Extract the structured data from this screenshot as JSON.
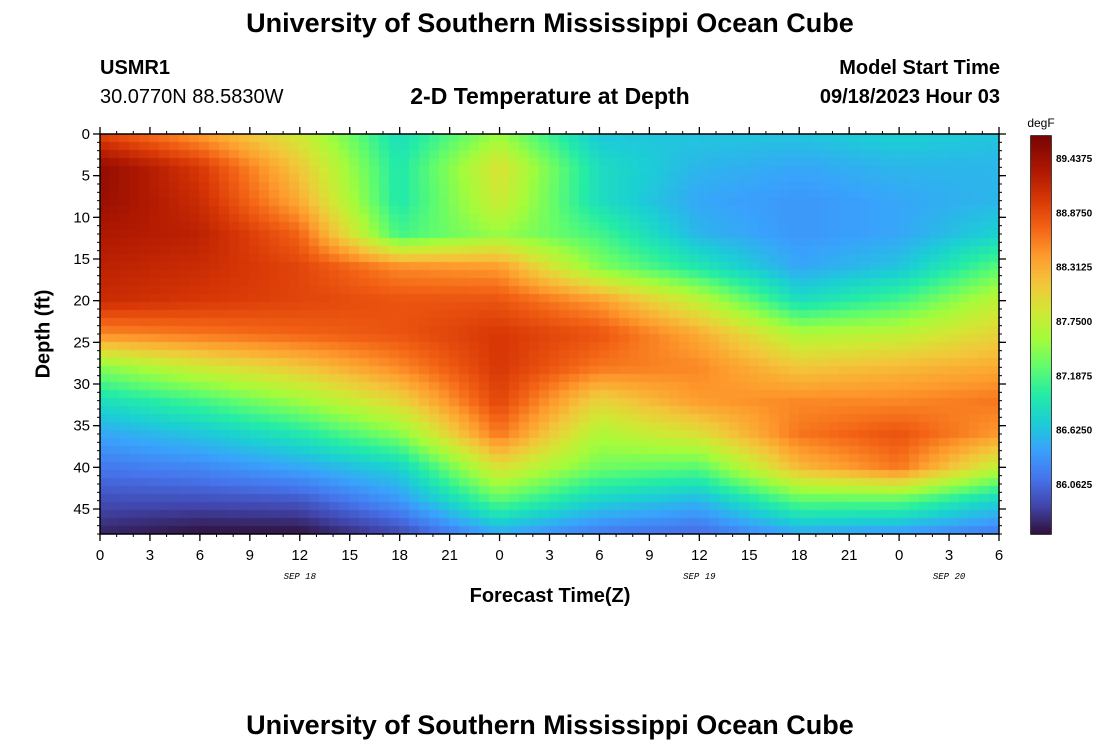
{
  "header": {
    "title": "University of Southern Mississippi Ocean Cube",
    "station_id": "USMR1",
    "coordinates": "30.0770N  88.5830W",
    "chart_title": "2-D Temperature at Depth",
    "model_start_label": "Model Start Time",
    "model_start_value": "09/18/2023 Hour 03"
  },
  "footer": {
    "title_repeat": "University of Southern Mississippi Ocean Cube"
  },
  "chart_data": {
    "type": "heatmap",
    "title": "2-D Temperature at Depth",
    "xlabel": "Forecast Time(Z)",
    "ylabel": "Depth (ft)",
    "x_range": [
      0,
      54
    ],
    "y_range": [
      0,
      48
    ],
    "x_ticks": [
      {
        "v": 0,
        "label": "0"
      },
      {
        "v": 3,
        "label": "3"
      },
      {
        "v": 6,
        "label": "6"
      },
      {
        "v": 9,
        "label": "9"
      },
      {
        "v": 12,
        "label": "12"
      },
      {
        "v": 15,
        "label": "15"
      },
      {
        "v": 18,
        "label": "18"
      },
      {
        "v": 21,
        "label": "21"
      },
      {
        "v": 24,
        "label": "0"
      },
      {
        "v": 27,
        "label": "3"
      },
      {
        "v": 30,
        "label": "6"
      },
      {
        "v": 33,
        "label": "9"
      },
      {
        "v": 36,
        "label": "12"
      },
      {
        "v": 39,
        "label": "15"
      },
      {
        "v": 42,
        "label": "18"
      },
      {
        "v": 45,
        "label": "21"
      },
      {
        "v": 48,
        "label": "0"
      },
      {
        "v": 51,
        "label": "3"
      },
      {
        "v": 54,
        "label": "6"
      }
    ],
    "date_labels": [
      {
        "v": 12,
        "label": "SEP 18"
      },
      {
        "v": 36,
        "label": "SEP 19"
      },
      {
        "v": 51,
        "label": "SEP 20"
      }
    ],
    "y_ticks": [
      0,
      5,
      10,
      15,
      20,
      25,
      30,
      35,
      40,
      45
    ],
    "colorbar": {
      "unit": "degF",
      "ticks": [
        "89.4375",
        "88.8750",
        "88.3125",
        "87.7500",
        "87.1875",
        "86.6250",
        "86.0625"
      ],
      "range": [
        85.6,
        89.75
      ]
    },
    "depth_levels": [
      0,
      4,
      8,
      12,
      16,
      20,
      24,
      28,
      32,
      36,
      40,
      44,
      48
    ],
    "time_hours": [
      0,
      6,
      12,
      18,
      24,
      30,
      36,
      42,
      48,
      54
    ],
    "values": [
      [
        89.0,
        88.5,
        87.9,
        86.9,
        87.6,
        86.7,
        86.7,
        86.7,
        86.8,
        86.7
      ],
      [
        89.6,
        89.1,
        88.2,
        87.0,
        88.0,
        86.9,
        86.6,
        86.5,
        86.6,
        86.6
      ],
      [
        89.55,
        89.2,
        88.4,
        87.0,
        87.9,
        86.9,
        86.5,
        86.4,
        86.5,
        86.6
      ],
      [
        89.4,
        89.3,
        88.8,
        87.2,
        87.6,
        87.2,
        86.6,
        86.4,
        86.5,
        86.8
      ],
      [
        89.3,
        89.2,
        89.0,
        88.6,
        88.5,
        87.5,
        87.0,
        86.5,
        86.7,
        87.3
      ],
      [
        89.2,
        89.1,
        89.0,
        88.9,
        88.9,
        88.5,
        87.8,
        86.9,
        87.2,
        87.8
      ],
      [
        88.6,
        88.7,
        88.8,
        88.9,
        89.1,
        88.9,
        88.4,
        87.7,
        87.8,
        88.1
      ],
      [
        87.5,
        87.9,
        88.2,
        88.6,
        89.1,
        88.7,
        88.6,
        88.2,
        88.3,
        88.4
      ],
      [
        86.9,
        87.2,
        87.6,
        88.1,
        89.0,
        88.1,
        88.5,
        88.6,
        88.6,
        88.7
      ],
      [
        86.5,
        86.7,
        87.0,
        87.5,
        88.7,
        87.7,
        88.0,
        88.7,
        88.9,
        88.5
      ],
      [
        86.2,
        86.3,
        86.5,
        86.8,
        88.0,
        87.4,
        87.3,
        88.3,
        88.7,
        87.8
      ],
      [
        85.95,
        85.95,
        86.0,
        86.4,
        87.3,
        86.8,
        86.6,
        87.3,
        87.3,
        86.8
      ],
      [
        85.7,
        85.6,
        85.6,
        85.9,
        86.5,
        86.2,
        86.1,
        86.5,
        86.4,
        86.2
      ]
    ]
  }
}
